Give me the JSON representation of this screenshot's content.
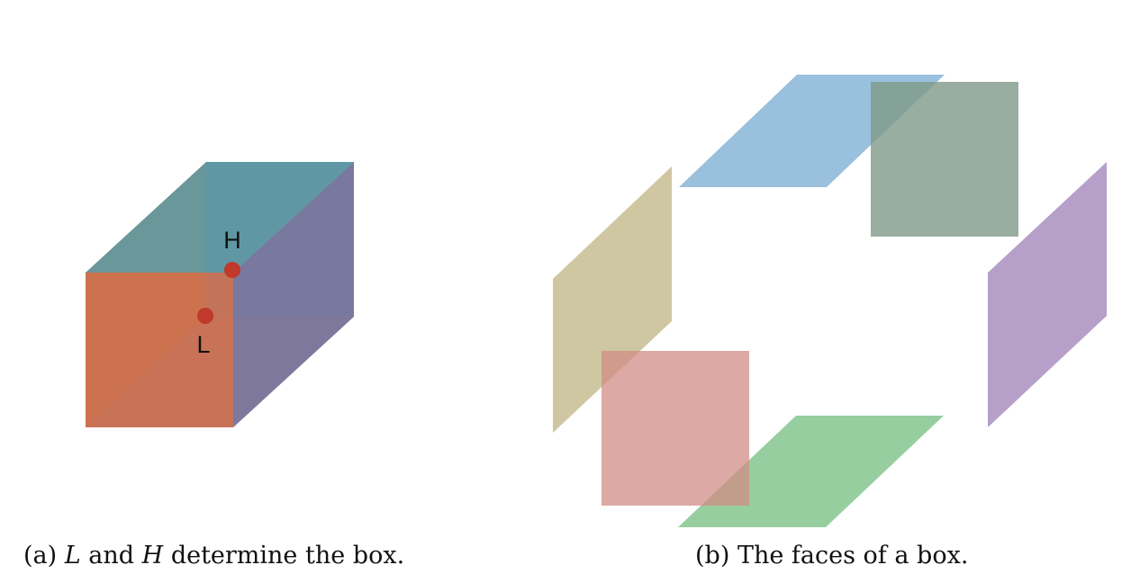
{
  "figure_a": {
    "caption_prefix": "(a)",
    "caption_var1": "L",
    "caption_mid": "and",
    "caption_var2": "H",
    "caption_suffix": "determine the box.",
    "point_high_label": "H",
    "point_low_label": "L",
    "point_color": "#c0392b",
    "face_colors": {
      "front": "#d2572f",
      "top": "#4a8a96",
      "back": "#3f7f9d",
      "right": "#6e5f8f",
      "left": "#8a7a55",
      "bottom": "#6a7d8f"
    }
  },
  "figure_b": {
    "caption_prefix": "(b)",
    "caption_text": "The faces of a box.",
    "face_colors": {
      "top": "#7fb0d3",
      "back": "#7f9a88",
      "left": "#c7bd91",
      "right": "#a98ebf",
      "front": "#d18c86",
      "bottom": "#84c58f"
    }
  }
}
